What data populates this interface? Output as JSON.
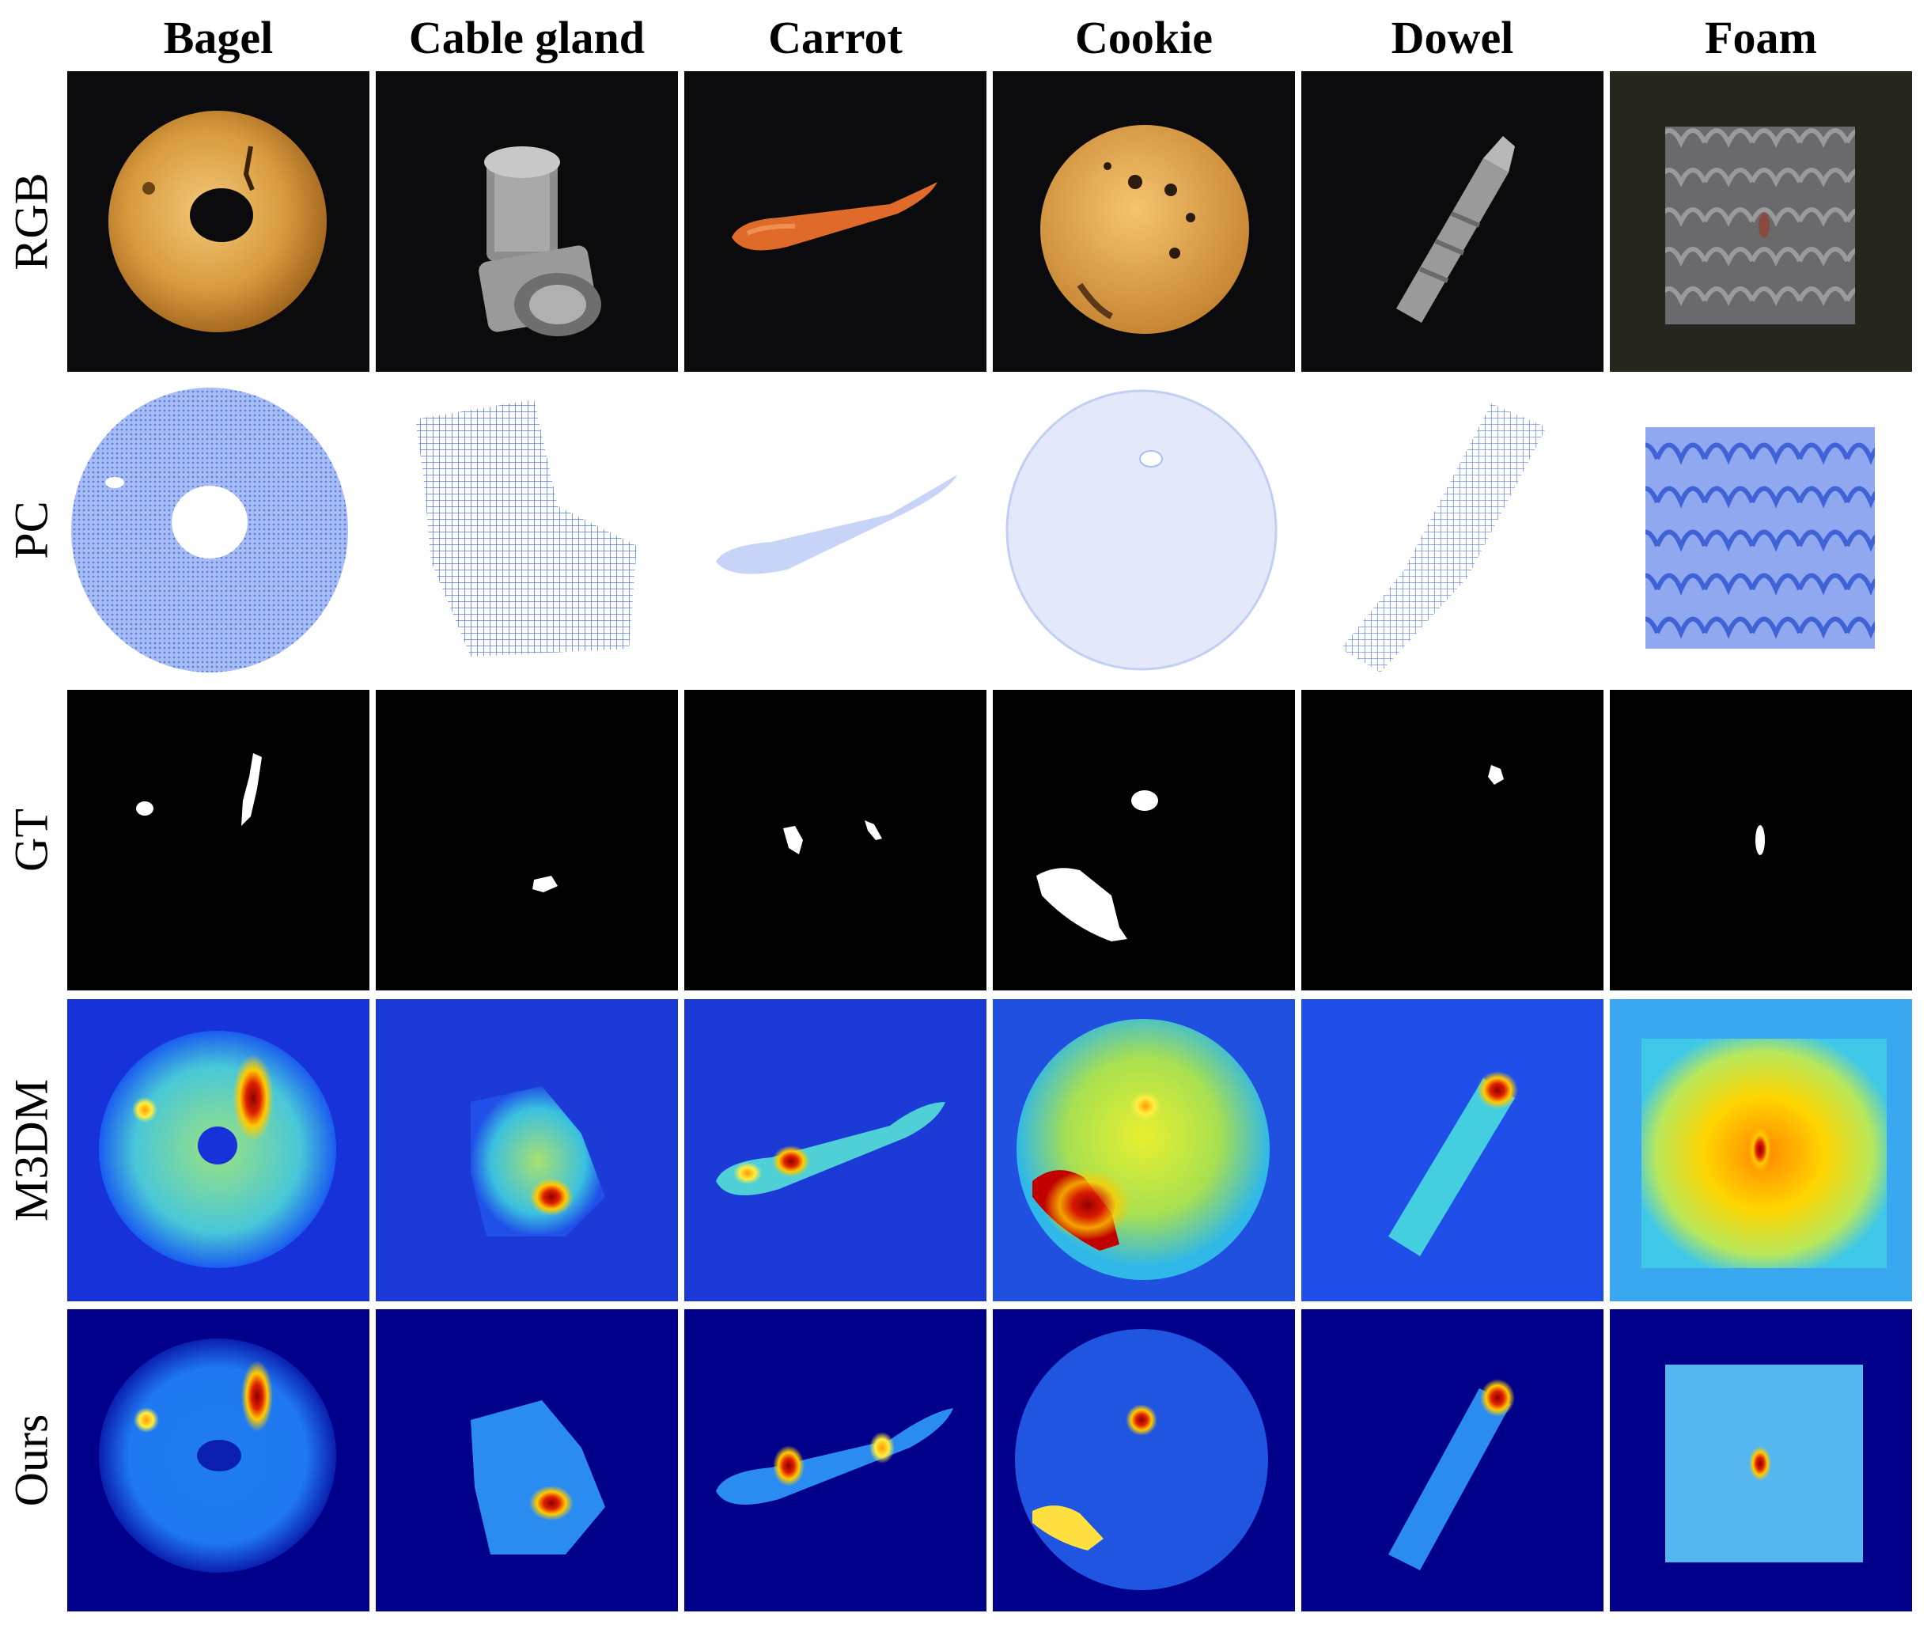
{
  "columns": [
    "Bagel",
    "Cable gland",
    "Carrot",
    "Cookie",
    "Dowel",
    "Foam"
  ],
  "rows": [
    "RGB",
    "PC",
    "GT",
    "M3DM",
    "Ours"
  ],
  "colors": {
    "background": "#ffffff",
    "rgb_bg": "#0b0b0d",
    "mask_bg": "#000000",
    "mask_fg": "#ffffff",
    "heat_low": "#00008b",
    "heat_mid": "#1e90ff",
    "heat_high": "#c00000",
    "pc_color": "#5a7fe0"
  }
}
